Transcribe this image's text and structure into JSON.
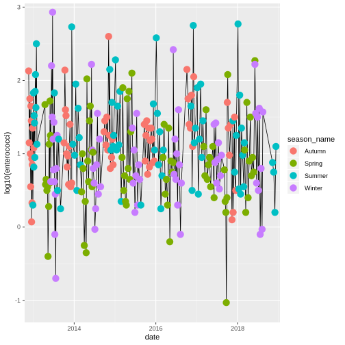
{
  "chart_data": {
    "type": "scatter",
    "connected_line": true,
    "xlabel": "date",
    "ylabel": "log10(enterococci)",
    "xlim": [
      "2012-10-15",
      "2019-01-15"
    ],
    "ylim": [
      -1.3,
      3.05
    ],
    "x_ticks": [
      "2014",
      "2016",
      "2018"
    ],
    "y_ticks": [
      -1,
      0,
      1,
      2,
      3
    ],
    "grid": true,
    "legend": {
      "title": "season_name",
      "position": "right",
      "entries": [
        "Autumn",
        "Spring",
        "Summer",
        "Winter"
      ]
    },
    "colors": {
      "Autumn": "#F8766D",
      "Spring": "#7CAE00",
      "Summer": "#00BFC4",
      "Winter": "#C77CFF",
      "line": "#000000",
      "panel": "#EBEBEB",
      "grid": "#FFFFFF"
    },
    "series": [
      {
        "name": "Autumn",
        "points": [
          [
            "2012-11-20",
            2.13
          ],
          [
            "2012-11-25",
            1.15
          ],
          [
            "2012-12-01",
            1.75
          ],
          [
            "2012-12-05",
            1.0
          ],
          [
            "2012-12-08",
            0.55
          ],
          [
            "2012-12-10",
            1.65
          ],
          [
            "2012-12-14",
            1.45
          ],
          [
            "2012-12-16",
            0.07
          ],
          [
            "2012-12-18",
            0.93
          ],
          [
            "2012-12-20",
            0.33
          ],
          [
            "2012-12-22",
            0.85
          ],
          [
            "2012-12-25",
            1.35
          ],
          [
            "2013-01-05",
            1.08
          ],
          [
            "2013-10-02",
            1.15
          ],
          [
            "2013-10-10",
            2.14
          ],
          [
            "2013-10-15",
            1.6
          ],
          [
            "2013-10-20",
            1.52
          ],
          [
            "2013-10-25",
            1.0
          ],
          [
            "2013-10-30",
            0.82
          ],
          [
            "2013-11-05",
            0.97
          ],
          [
            "2013-11-12",
            0.58
          ],
          [
            "2013-11-18",
            1.1
          ],
          [
            "2013-11-25",
            1.4
          ],
          [
            "2013-12-01",
            0.55
          ],
          [
            "2013-12-10",
            0.6
          ],
          [
            "2014-09-25",
            1.3
          ],
          [
            "2014-10-02",
            1.45
          ],
          [
            "2014-10-12",
            1.12
          ],
          [
            "2014-10-20",
            1.5
          ],
          [
            "2014-10-28",
            1.05
          ],
          [
            "2014-11-05",
            2.6
          ],
          [
            "2014-11-12",
            1.25
          ],
          [
            "2014-11-20",
            0.8
          ],
          [
            "2014-12-01",
            0.95
          ],
          [
            "2014-12-08",
            1.2
          ],
          [
            "2014-12-15",
            0.85
          ],
          [
            "2015-09-20",
            1.4
          ],
          [
            "2015-09-28",
            0.9
          ],
          [
            "2015-10-05",
            1.25
          ],
          [
            "2015-10-12",
            1.45
          ],
          [
            "2015-10-20",
            0.72
          ],
          [
            "2015-10-28",
            1.35
          ],
          [
            "2015-11-05",
            0.82
          ],
          [
            "2015-11-12",
            1.18
          ],
          [
            "2015-11-20",
            1.35
          ],
          [
            "2015-11-28",
            1.2
          ],
          [
            "2015-12-05",
            0.88
          ],
          [
            "2015-12-12",
            1.05
          ],
          [
            "2015-12-18",
            0.9
          ],
          [
            "2016-10-05",
            2.15
          ],
          [
            "2016-10-15",
            1.75
          ],
          [
            "2016-10-25",
            1.4
          ],
          [
            "2016-11-05",
            1.35
          ],
          [
            "2016-11-15",
            1.8
          ],
          [
            "2016-11-25",
            1.1
          ],
          [
            "2016-12-05",
            2.05
          ],
          [
            "2017-10-01",
            1.7
          ],
          [
            "2017-10-10",
            1.35
          ],
          [
            "2017-10-20",
            0.98
          ],
          [
            "2017-11-01",
            1.4
          ],
          [
            "2017-11-12",
            0.1
          ],
          [
            "2017-11-22",
            0.2
          ],
          [
            "2017-12-05",
            1.5
          ],
          [
            "2017-12-15",
            0.5
          ]
        ]
      },
      {
        "name": "Spring",
        "points": [
          [
            "2013-04-15",
            1.67
          ],
          [
            "2013-04-20",
            0.58
          ],
          [
            "2013-04-25",
            0.65
          ],
          [
            "2013-05-02",
            0.5
          ],
          [
            "2013-05-08",
            0.55
          ],
          [
            "2013-05-12",
            -0.4
          ],
          [
            "2013-05-18",
            0.28
          ],
          [
            "2013-05-22",
            1.13
          ],
          [
            "2013-05-26",
            0.6
          ],
          [
            "2013-05-30",
            1.72
          ],
          [
            "2013-06-03",
            1.25
          ],
          [
            "2013-06-08",
            1.2
          ],
          [
            "2014-03-08",
            0.48
          ],
          [
            "2014-03-15",
            1.0
          ],
          [
            "2014-03-22",
            0.8
          ],
          [
            "2014-04-01",
            -0.25
          ],
          [
            "2014-04-10",
            0.35
          ],
          [
            "2014-04-18",
            -0.35
          ],
          [
            "2014-04-25",
            2.02
          ],
          [
            "2014-05-02",
            0.9
          ],
          [
            "2014-05-10",
            0.62
          ],
          [
            "2014-05-18",
            1.45
          ],
          [
            "2014-05-25",
            1.65
          ],
          [
            "2014-06-02",
            1.05
          ],
          [
            "2014-06-10",
            0.55
          ],
          [
            "2014-06-18",
            1.02
          ],
          [
            "2015-03-05",
            0.95
          ],
          [
            "2015-03-12",
            1.9
          ],
          [
            "2015-03-20",
            0.5
          ],
          [
            "2015-03-28",
            0.7
          ],
          [
            "2015-04-05",
            0.35
          ],
          [
            "2015-04-12",
            0.3
          ],
          [
            "2015-04-20",
            1.75
          ],
          [
            "2015-04-28",
            0.8
          ],
          [
            "2015-05-06",
            1.85
          ],
          [
            "2015-05-14",
            0.65
          ],
          [
            "2015-05-22",
            1.3
          ],
          [
            "2015-06-01",
            2.1
          ],
          [
            "2016-03-05",
            0.95
          ],
          [
            "2016-03-15",
            1.4
          ],
          [
            "2016-03-25",
            0.45
          ],
          [
            "2016-04-05",
            0.65
          ],
          [
            "2016-04-15",
            0.3
          ],
          [
            "2016-04-25",
            1.35
          ],
          [
            "2016-05-05",
            -0.2
          ],
          [
            "2016-05-15",
            0.9
          ],
          [
            "2016-05-25",
            0.75
          ],
          [
            "2016-06-05",
            0.88
          ],
          [
            "2017-03-05",
            1.1
          ],
          [
            "2017-03-15",
            0.7
          ],
          [
            "2017-03-25",
            1.6
          ],
          [
            "2017-04-05",
            0.65
          ],
          [
            "2017-04-15",
            0.85
          ],
          [
            "2017-04-25",
            0.95
          ],
          [
            "2017-05-05",
            0.55
          ],
          [
            "2017-05-15",
            0.9
          ],
          [
            "2017-05-25",
            1.1
          ],
          [
            "2017-06-05",
            0.4
          ],
          [
            "2017-09-05",
            0.78
          ],
          [
            "2017-09-12",
            0.35
          ],
          [
            "2017-09-18",
            0.2
          ],
          [
            "2017-09-22",
            -1.03
          ],
          [
            "2017-09-28",
            0.4
          ],
          [
            "2017-10-05",
            2.08
          ],
          [
            "2018-03-05",
            1.05
          ],
          [
            "2018-03-15",
            0.2
          ],
          [
            "2018-03-25",
            1.7
          ],
          [
            "2018-04-05",
            0.4
          ],
          [
            "2018-04-15",
            0.9
          ],
          [
            "2018-04-25",
            1.5
          ],
          [
            "2018-05-05",
            0.7
          ],
          [
            "2018-05-15",
            0.95
          ],
          [
            "2018-05-25",
            0.75
          ],
          [
            "2018-06-05",
            2.27
          ]
        ]
      },
      {
        "name": "Summer",
        "points": [
          [
            "2012-12-28",
            0.3
          ],
          [
            "2013-01-02",
            1.83
          ],
          [
            "2013-01-05",
            0.82
          ],
          [
            "2013-01-08",
            1.52
          ],
          [
            "2013-01-11",
            1.42
          ],
          [
            "2013-01-14",
            0.95
          ],
          [
            "2013-01-17",
            1.85
          ],
          [
            "2013-01-20",
            2.08
          ],
          [
            "2013-01-24",
            1.63
          ],
          [
            "2013-01-28",
            2.5
          ],
          [
            "2013-02-02",
            1.13
          ],
          [
            "2013-07-08",
            1.83
          ],
          [
            "2013-08-05",
            0.5
          ],
          [
            "2013-08-15",
            1.2
          ],
          [
            "2013-09-01",
            0.25
          ],
          [
            "2013-12-10",
            2.73
          ],
          [
            "2013-12-20",
            1.13
          ],
          [
            "2014-01-05",
            0.98
          ],
          [
            "2014-01-15",
            1.95
          ],
          [
            "2014-01-25",
            0.5
          ],
          [
            "2014-02-05",
            1.62
          ],
          [
            "2014-02-15",
            1.22
          ],
          [
            "2014-02-25",
            0.85
          ],
          [
            "2014-11-15",
            2.15
          ],
          [
            "2014-11-25",
            1.05
          ],
          [
            "2014-12-05",
            1.7
          ],
          [
            "2014-12-15",
            1.1
          ],
          [
            "2014-12-20",
            1.25
          ],
          [
            "2015-01-05",
            2.28
          ],
          [
            "2015-01-15",
            1.05
          ],
          [
            "2015-01-25",
            1.65
          ],
          [
            "2015-02-05",
            1.12
          ],
          [
            "2015-02-15",
            1.85
          ],
          [
            "2015-02-25",
            0.35
          ],
          [
            "2015-08-20",
            0.3
          ],
          [
            "2015-12-10",
            1.68
          ],
          [
            "2015-12-20",
            1.05
          ],
          [
            "2016-01-05",
            2.58
          ],
          [
            "2016-01-15",
            1.55
          ],
          [
            "2016-01-25",
            0.85
          ],
          [
            "2016-02-05",
            1.3
          ],
          [
            "2016-02-15",
            0.25
          ],
          [
            "2016-02-25",
            0.7
          ],
          [
            "2016-03-01",
            0.95
          ],
          [
            "2016-03-08",
            1.05
          ],
          [
            "2016-11-10",
            1.65
          ],
          [
            "2016-11-20",
            0.5
          ],
          [
            "2016-12-01",
            2.75
          ],
          [
            "2016-12-10",
            1.15
          ],
          [
            "2016-12-20",
            1.35
          ],
          [
            "2017-01-05",
            1.9
          ],
          [
            "2017-01-15",
            0.45
          ],
          [
            "2017-01-25",
            1.2
          ],
          [
            "2017-02-05",
            1.95
          ],
          [
            "2017-02-15",
            0.95
          ],
          [
            "2017-02-25",
            1.45
          ],
          [
            "2017-11-20",
            1.45
          ],
          [
            "2017-12-05",
            0.75
          ],
          [
            "2017-12-20",
            1.25
          ],
          [
            "2018-01-05",
            2.77
          ],
          [
            "2018-01-12",
            0.52
          ],
          [
            "2018-01-20",
            1.8
          ],
          [
            "2018-01-28",
            0.45
          ],
          [
            "2018-02-05",
            1.35
          ],
          [
            "2018-02-15",
            0.98
          ],
          [
            "2018-02-25",
            0.55
          ],
          [
            "2018-03-02",
            1.15
          ],
          [
            "2018-11-10",
            0.88
          ],
          [
            "2018-11-20",
            0.75
          ],
          [
            "2018-12-01",
            0.2
          ],
          [
            "2018-12-10",
            1.1
          ]
        ]
      },
      {
        "name": "Winter",
        "points": [
          [
            "2013-06-05",
            0.62
          ],
          [
            "2013-06-12",
            2.2
          ],
          [
            "2013-06-18",
            1.5
          ],
          [
            "2013-06-22",
            2.93
          ],
          [
            "2013-06-26",
            1.2
          ],
          [
            "2013-06-30",
            0.78
          ],
          [
            "2013-07-04",
            1.43
          ],
          [
            "2013-07-08",
            0.62
          ],
          [
            "2013-07-12",
            -0.1
          ],
          [
            "2013-07-16",
            0.45
          ],
          [
            "2013-07-20",
            -0.7
          ],
          [
            "2013-07-25",
            0.8
          ],
          [
            "2013-08-01",
            1.25
          ],
          [
            "2014-06-05",
            2.22
          ],
          [
            "2014-06-12",
            1.05
          ],
          [
            "2014-06-20",
            0.8
          ],
          [
            "2014-06-28",
            0.6
          ],
          [
            "2014-07-05",
            -0.03
          ],
          [
            "2014-07-12",
            0.25
          ],
          [
            "2014-07-20",
            0.85
          ],
          [
            "2014-07-28",
            1.55
          ],
          [
            "2014-08-05",
            0.45
          ],
          [
            "2014-08-15",
            1.2
          ],
          [
            "2014-08-25",
            0.55
          ],
          [
            "2015-06-05",
            1.35
          ],
          [
            "2015-06-12",
            0.6
          ],
          [
            "2015-06-20",
            1.05
          ],
          [
            "2015-06-28",
            0.2
          ],
          [
            "2015-07-06",
            0.7
          ],
          [
            "2015-07-14",
            1.55
          ],
          [
            "2015-07-22",
            0.3
          ],
          [
            "2015-08-01",
            0.85
          ],
          [
            "2015-08-10",
            0.65
          ],
          [
            "2016-06-05",
            2.42
          ],
          [
            "2016-06-12",
            0.72
          ],
          [
            "2016-06-20",
            1.2
          ],
          [
            "2016-06-28",
            0.65
          ],
          [
            "2016-07-06",
            1.0
          ],
          [
            "2016-07-14",
            0.3
          ],
          [
            "2016-07-22",
            1.6
          ],
          [
            "2016-07-30",
            0.85
          ],
          [
            "2016-08-08",
            -0.1
          ],
          [
            "2016-08-16",
            0.6
          ],
          [
            "2017-06-05",
            1.4
          ],
          [
            "2017-06-12",
            0.88
          ],
          [
            "2017-06-20",
            1.42
          ],
          [
            "2017-06-28",
            0.6
          ],
          [
            "2017-07-06",
            0.92
          ],
          [
            "2017-07-14",
            1.15
          ],
          [
            "2017-07-22",
            0.52
          ],
          [
            "2017-08-01",
            0.7
          ],
          [
            "2017-08-10",
            0.98
          ],
          [
            "2018-06-05",
            2.22
          ],
          [
            "2018-06-12",
            1.55
          ],
          [
            "2018-06-20",
            0.6
          ],
          [
            "2018-06-28",
            1.5
          ],
          [
            "2018-07-06",
            0.5
          ],
          [
            "2018-07-14",
            1.62
          ],
          [
            "2018-07-22",
            -0.1
          ],
          [
            "2018-07-30",
            0.8
          ],
          [
            "2018-08-08",
            -0.03
          ],
          [
            "2018-08-15",
            1.57
          ]
        ]
      }
    ]
  }
}
